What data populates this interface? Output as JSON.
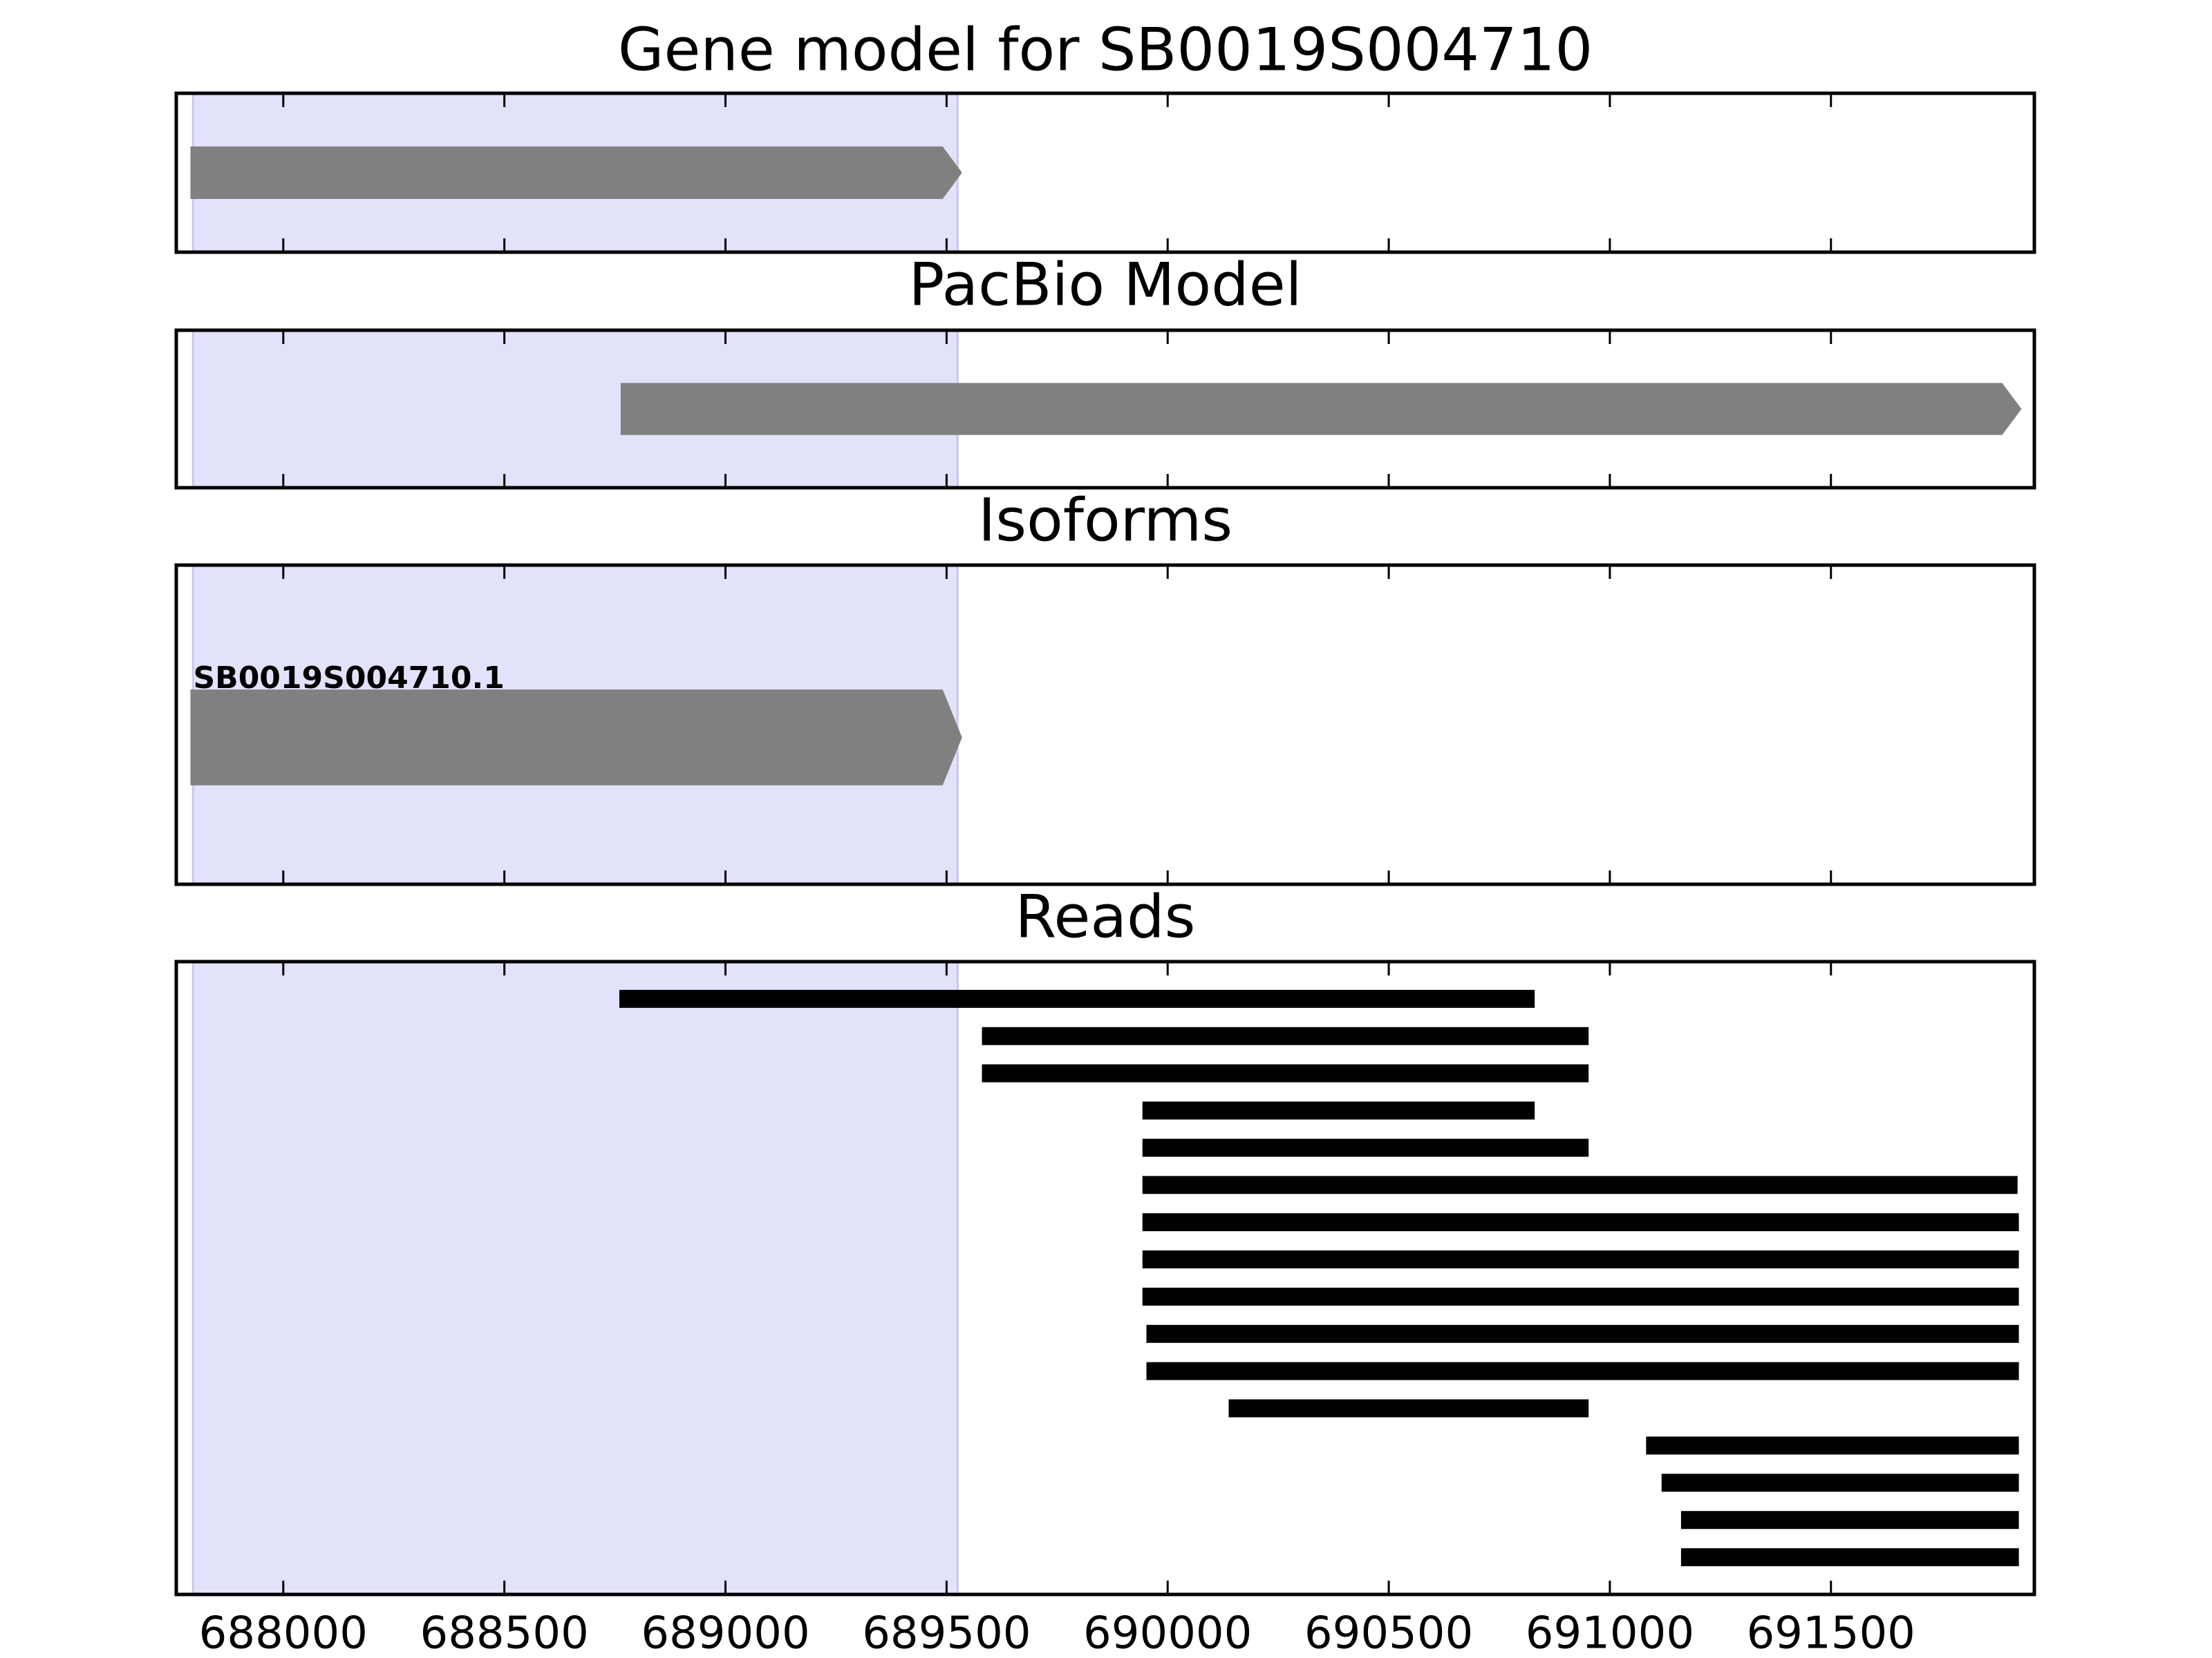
{
  "chart_data": [
    {
      "type": "gene",
      "title": "Gene model for SB0019S004710",
      "xlim": [
        687758,
        691960
      ],
      "xticks": [
        688000,
        688500,
        689000,
        689500,
        690000,
        690500,
        691000,
        691500
      ],
      "highlight": [
        687796,
        689525
      ],
      "highlight_color": "#e2e2fb",
      "color": "#808080",
      "intervals": [
        [
          687790,
          689535
        ]
      ]
    },
    {
      "type": "gene",
      "title": "PacBio Model",
      "xlim": [
        687758,
        691960
      ],
      "xticks": [
        688000,
        688500,
        689000,
        689500,
        690000,
        690500,
        691000,
        691500
      ],
      "highlight": [
        687796,
        689525
      ],
      "highlight_color": "#e2e2fb",
      "color": "#808080",
      "intervals": [
        [
          688763,
          691931
        ]
      ]
    },
    {
      "type": "gene",
      "title": "Isoforms",
      "xlim": [
        687758,
        691960
      ],
      "xticks": [
        688000,
        688500,
        689000,
        689500,
        690000,
        690500,
        691000,
        691500
      ],
      "highlight": [
        687796,
        689525
      ],
      "highlight_color": "#e2e2fb",
      "color": "#808080",
      "intervals": [
        [
          687790,
          689535
        ]
      ],
      "labels": [
        "SB0019S004710.1"
      ]
    },
    {
      "type": "reads",
      "title": "Reads",
      "xlim": [
        687758,
        691960
      ],
      "xticks": [
        688000,
        688500,
        689000,
        689500,
        690000,
        690500,
        691000,
        691500
      ],
      "highlight": [
        687796,
        689525
      ],
      "highlight_color": "#e2e2fb",
      "color": "#000000",
      "intervals": [
        [
          688760,
          690830
        ],
        [
          689580,
          690952
        ],
        [
          689580,
          690952
        ],
        [
          689943,
          690830
        ],
        [
          689943,
          690952
        ],
        [
          689943,
          691922
        ],
        [
          689943,
          691925
        ],
        [
          689943,
          691925
        ],
        [
          689943,
          691925
        ],
        [
          689952,
          691925
        ],
        [
          689952,
          691925
        ],
        [
          690138,
          690952
        ],
        [
          691082,
          691925
        ],
        [
          691117,
          691925
        ],
        [
          691161,
          691925
        ],
        [
          691161,
          691925
        ]
      ],
      "tick_labels": true
    }
  ]
}
